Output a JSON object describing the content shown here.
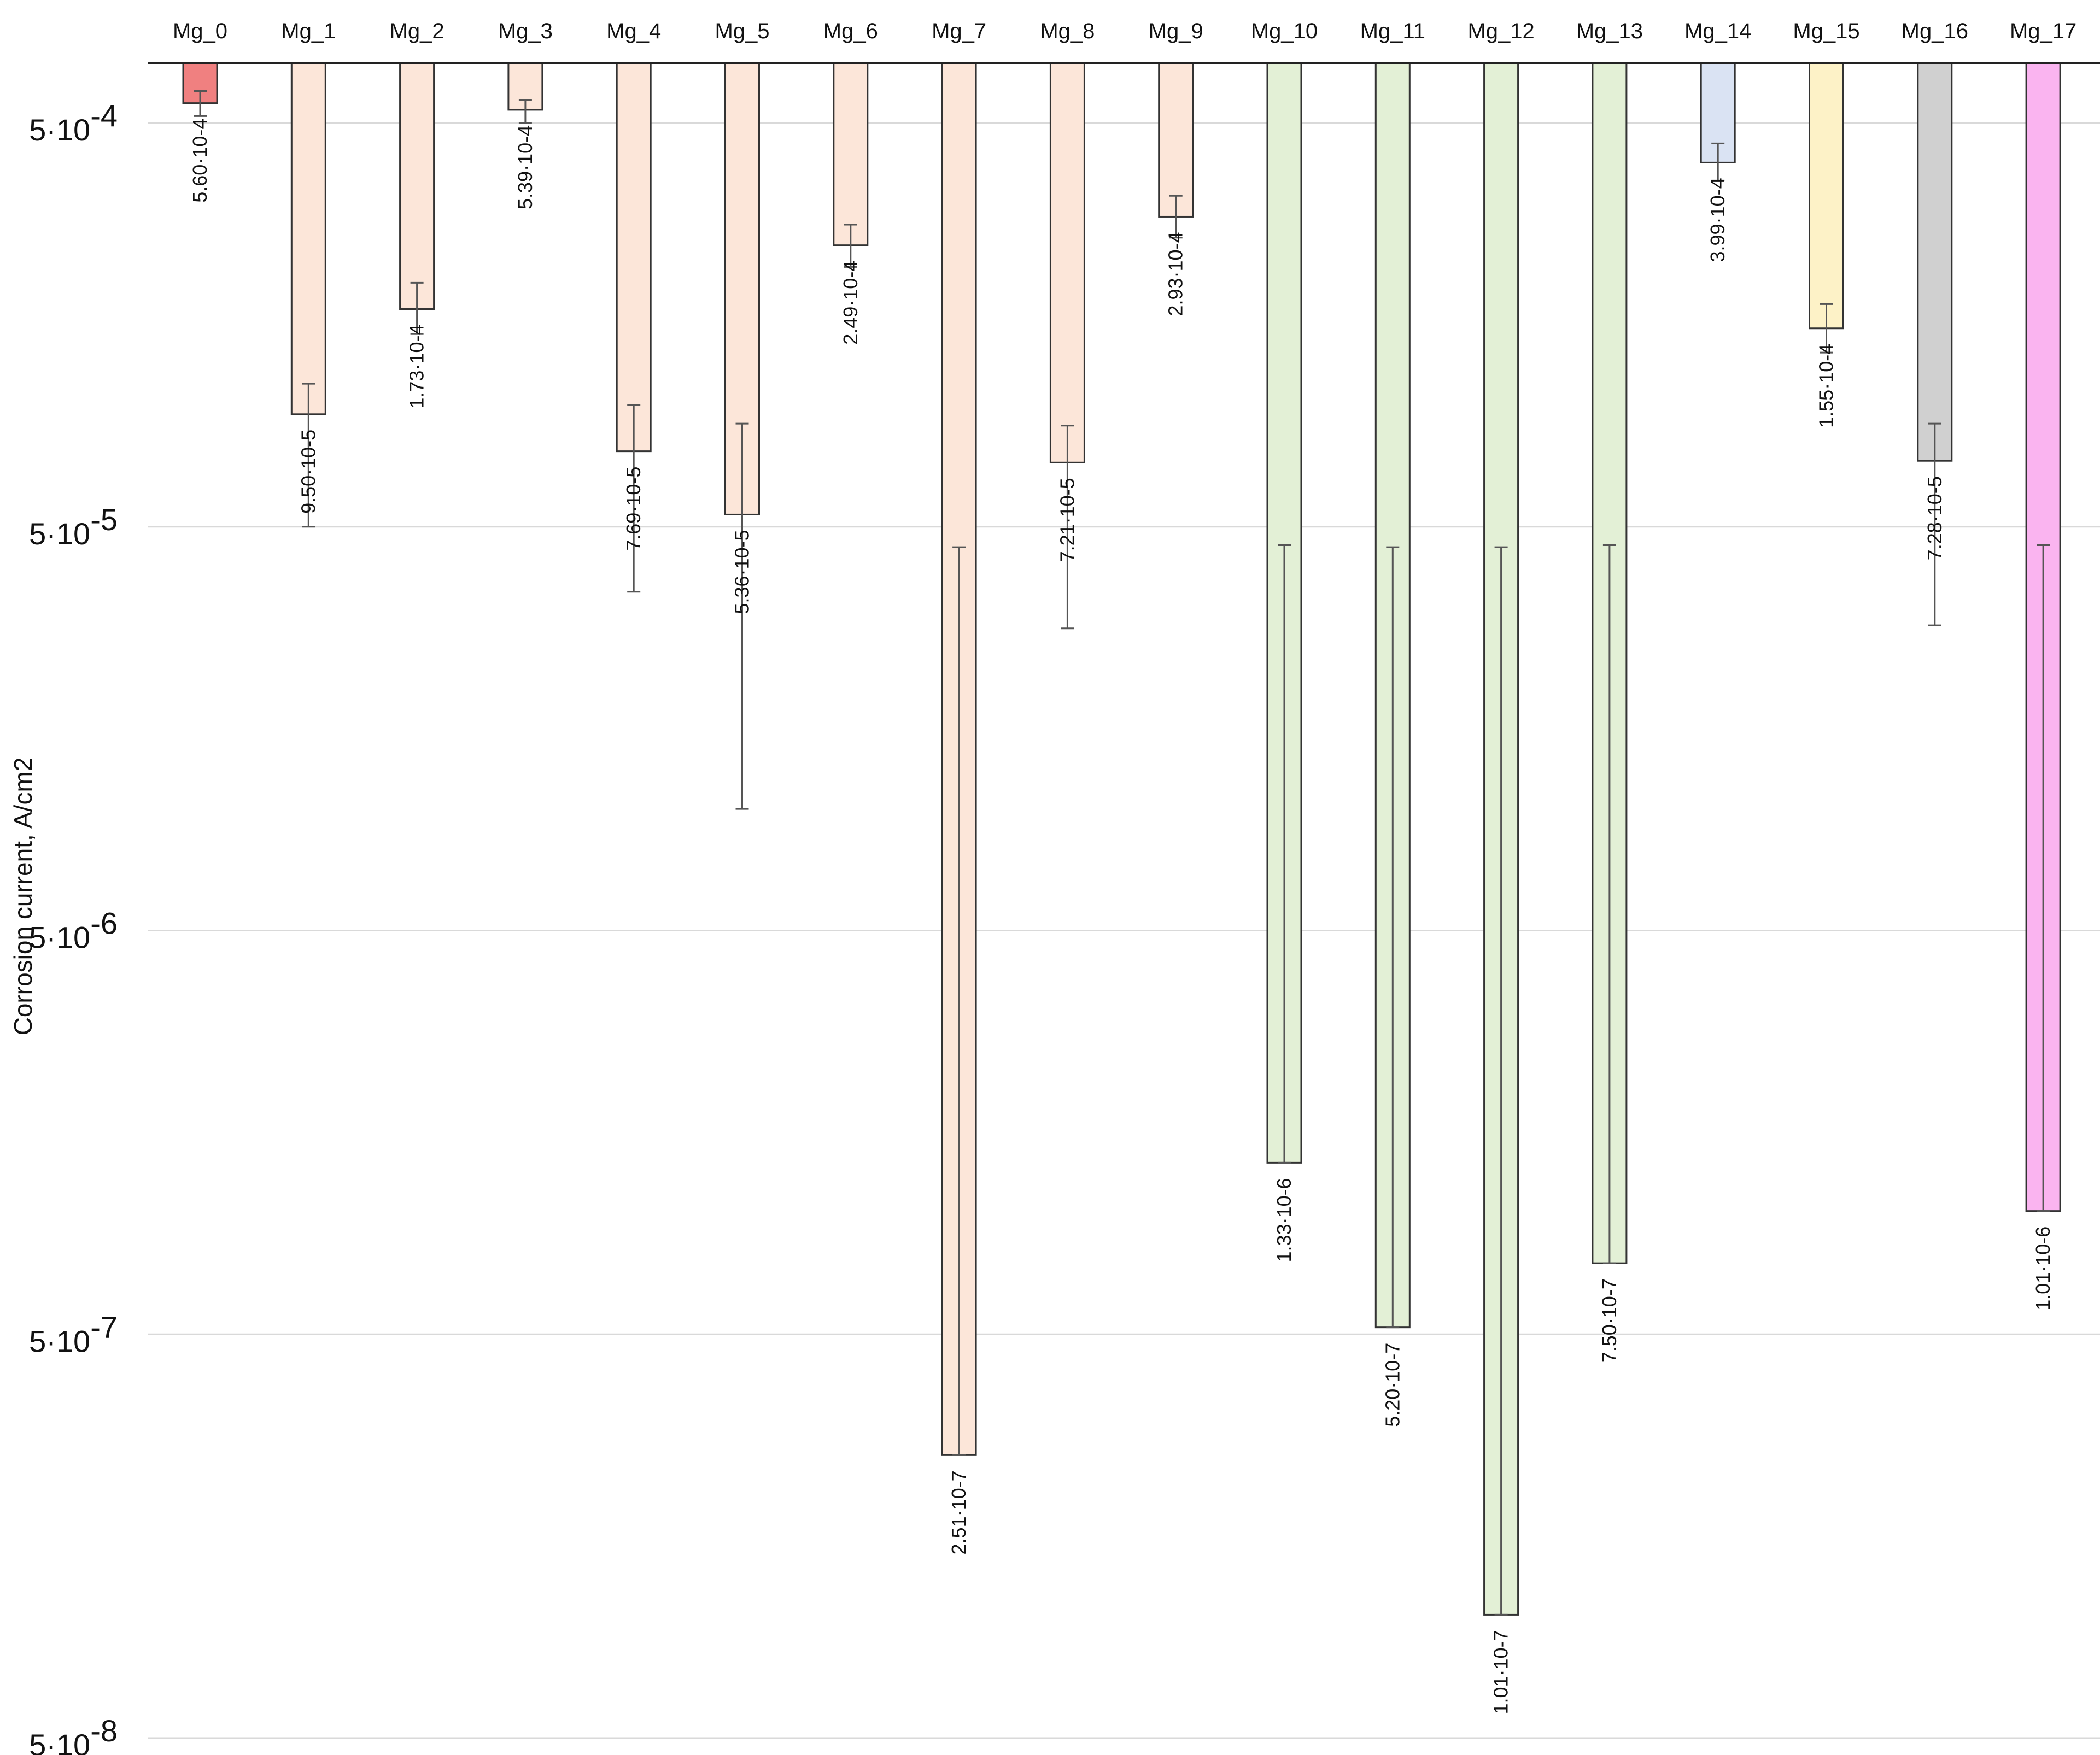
{
  "chart_data": {
    "type": "bar",
    "title": "",
    "xlabel": "",
    "ylabel": "Corrosion current, A/cm2",
    "yscale": "log",
    "ylim": [
      5e-08,
      0.0005
    ],
    "y_ticks": [
      {
        "base": "5·10",
        "exp": "-4",
        "value": 0.0005
      },
      {
        "base": "5·10",
        "exp": "-5",
        "value": 5e-05
      },
      {
        "base": "5·10",
        "exp": "-6",
        "value": 5e-06
      },
      {
        "base": "5·10",
        "exp": "-7",
        "value": 5e-07
      },
      {
        "base": "5·10",
        "exp": "-8",
        "value": 5e-08
      }
    ],
    "grid": true,
    "categories": [
      "Mg_0",
      "Mg_1",
      "Mg_2",
      "Mg_3",
      "Mg_4",
      "Mg_5",
      "Mg_6",
      "Mg_7",
      "Mg_8",
      "Mg_9",
      "Mg_10",
      "Mg_11",
      "Mg_12",
      "Mg_13",
      "Mg_14",
      "Mg_15",
      "Mg_16",
      "Mg_17"
    ],
    "values": [
      0.00056,
      9.5e-05,
      0.000173,
      0.000539,
      7.69e-05,
      5.36e-05,
      0.000249,
      2.51e-07,
      7.21e-05,
      0.000293,
      1.33e-06,
      5.2e-07,
      1.01e-07,
      7.5e-07,
      0.000399,
      0.000155,
      7.28e-05,
      1.01e-06
    ],
    "value_labels": [
      "5.60·10-4",
      "9.50·10-5",
      "1.73·10-4",
      "5.39·10-4",
      "7.69·10-5",
      "5.36·10-5",
      "2.49·10-4",
      "2.51·10-7",
      "7.21·10-5",
      "2.93·10-4",
      "1.33·10-6",
      "5.20·10-7",
      "1.01·10-7",
      "7.50·10-7",
      "3.99·10-4",
      "1.55·10-4",
      "7.28·10-5",
      "1.01·10-6"
    ],
    "error_low": [
      0.0006,
      0.000113,
      0.000201,
      0.00057,
      0.0001,
      9e-05,
      0.00028,
      4.45e-05,
      8.9e-05,
      0.00033,
      4.5e-05,
      4.45e-05,
      4.45e-05,
      4.5e-05,
      0.000445,
      0.000178,
      9e-05,
      4.5e-05
    ],
    "error_high": [
      0.00052,
      5e-05,
      0.00015,
      0.0005,
      3.45e-05,
      1e-05,
      0.00022,
      2.51e-07,
      2.8e-05,
      0.00026,
      1.33e-06,
      5.2e-07,
      1.01e-07,
      7.5e-07,
      0.00036,
      0.000135,
      2.85e-05,
      1.01e-06
    ],
    "colors": [
      "#f08080",
      "#fce6d9",
      "#fce6d9",
      "#fce6d9",
      "#fce6d9",
      "#fce6d9",
      "#fce6d9",
      "#fce6d9",
      "#fce6d9",
      "#fce6d9",
      "#e3f0d6",
      "#e3f0d6",
      "#e3f0d6",
      "#e3f0d6",
      "#dae3f3",
      "#fdf2c7",
      "#d0d0d0",
      "#fab4f0"
    ]
  }
}
